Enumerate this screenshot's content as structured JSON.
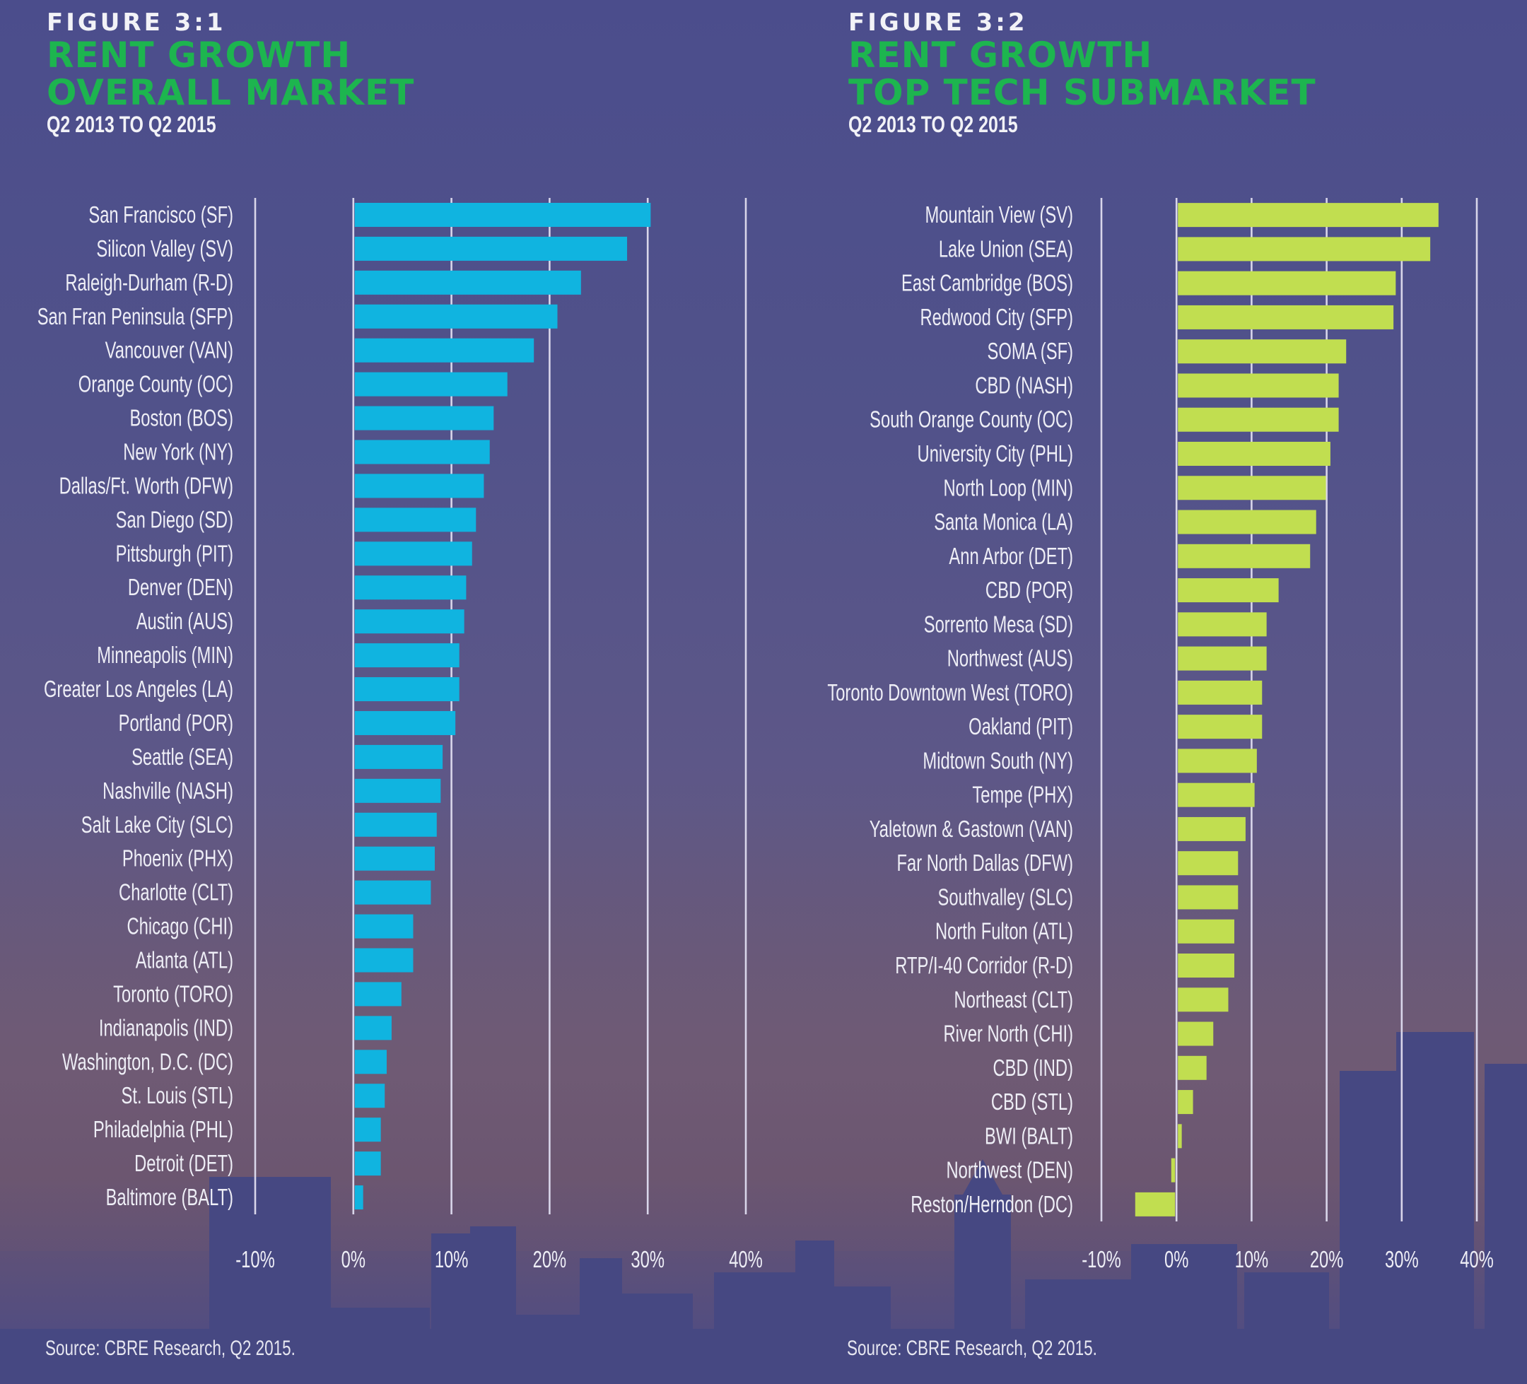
{
  "figures": [
    {
      "number": "FIGURE 3:1",
      "title_line1": "RENT GROWTH",
      "title_line2": "OVERALL MARKET",
      "subtitle": "Q2 2013 TO Q2 2015",
      "source": "Source: CBRE Research, Q2 2015."
    },
    {
      "number": "FIGURE 3:2",
      "title_line1": "RENT GROWTH",
      "title_line2": "TOP TECH SUBMARKET",
      "subtitle": "Q2 2013 TO Q2 2015",
      "source": "Source: CBRE Research, Q2 2015."
    }
  ],
  "colors": {
    "title_green": "#1db54f",
    "bar_overall": "#10b4e0",
    "bar_tech": "#c1de50",
    "gridline": "#d9d6ea"
  },
  "chart_data": [
    {
      "type": "bar",
      "orientation": "horizontal",
      "title": "Rent Growth Overall Market",
      "subtitle": "Q2 2013 to Q2 2015",
      "xlabel": "",
      "ylabel": "",
      "xlim": [
        -10,
        40
      ],
      "x_ticks": [
        -10,
        0,
        10,
        20,
        30,
        40
      ],
      "x_tick_labels": [
        "-10%",
        "0%",
        "10%",
        "20%",
        "30%",
        "40%"
      ],
      "grid": true,
      "unit": "%",
      "categories": [
        "San Francisco (SF)",
        "Silicon Valley (SV)",
        "Raleigh-Durham (R-D)",
        "San Fran Peninsula (SFP)",
        "Vancouver (VAN)",
        "Orange County (OC)",
        "Boston (BOS)",
        "New York (NY)",
        "Dallas/Ft. Worth (DFW)",
        "San Diego (SD)",
        "Pittsburgh (PIT)",
        "Denver (DEN)",
        "Austin (AUS)",
        "Minneapolis (MIN)",
        "Greater Los Angeles (LA)",
        "Portland (POR)",
        "Seattle (SEA)",
        "Nashville (NASH)",
        "Salt Lake City (SLC)",
        "Phoenix (PHX)",
        "Charlotte (CLT)",
        "Chicago (CHI)",
        "Atlanta (ATL)",
        "Toronto (TORO)",
        "Indianapolis (IND)",
        "Washington, D.C. (DC)",
        "St. Louis (STL)",
        "Philadelphia (PHL)",
        "Detroit (DET)",
        "Baltimore (BALT)"
      ],
      "values": [
        30.3,
        27.9,
        23.2,
        20.8,
        18.4,
        15.7,
        14.3,
        13.9,
        13.3,
        12.5,
        12.1,
        11.5,
        11.3,
        10.8,
        10.8,
        10.4,
        9.1,
        8.9,
        8.5,
        8.3,
        7.9,
        6.1,
        6.1,
        4.9,
        3.9,
        3.4,
        3.2,
        2.8,
        2.8,
        1.0
      ],
      "source": "Source: CBRE Research, Q2 2015."
    },
    {
      "type": "bar",
      "orientation": "horizontal",
      "title": "Rent Growth Top Tech Submarket",
      "subtitle": "Q2 2013 to Q2 2015",
      "xlabel": "",
      "ylabel": "",
      "xlim": [
        -10,
        40
      ],
      "x_ticks": [
        -10,
        0,
        10,
        20,
        30,
        40
      ],
      "x_tick_labels": [
        "-10%",
        "0%",
        "10%",
        "20%",
        "30%",
        "40%"
      ],
      "grid": true,
      "unit": "%",
      "categories": [
        "Mountain View (SV)",
        "Lake Union (SEA)",
        "East Cambridge (BOS)",
        "Redwood City (SFP)",
        "SOMA (SF)",
        "CBD (NASH)",
        "South Orange County (OC)",
        "University City (PHL)",
        "North Loop (MIN)",
        "Santa Monica (LA)",
        "Ann Arbor (DET)",
        "CBD (POR)",
        "Sorrento Mesa (SD)",
        "Northwest (AUS)",
        "Toronto Downtown West (TORO)",
        "Oakland (PIT)",
        "Midtown South (NY)",
        "Tempe (PHX)",
        "Yaletown & Gastown (VAN)",
        "Far North Dallas (DFW)",
        "Southvalley (SLC)",
        "North Fulton (ATL)",
        "RTP/I-40 Corridor (R-D)",
        "Northeast (CLT)",
        "River North (CHI)",
        "CBD (IND)",
        "CBD (STL)",
        "BWI (BALT)",
        "Northwest (DEN)",
        "Reston/Herndon (DC)"
      ],
      "values": [
        34.9,
        33.8,
        29.2,
        28.9,
        22.6,
        21.6,
        21.6,
        20.5,
        19.9,
        18.6,
        17.8,
        13.6,
        12.0,
        12.0,
        11.4,
        11.4,
        10.7,
        10.4,
        9.2,
        8.2,
        8.2,
        7.7,
        7.7,
        6.9,
        4.9,
        4.0,
        2.2,
        0.7,
        -0.7,
        -5.5
      ],
      "source": "Source: CBRE Research, Q2 2015."
    }
  ]
}
